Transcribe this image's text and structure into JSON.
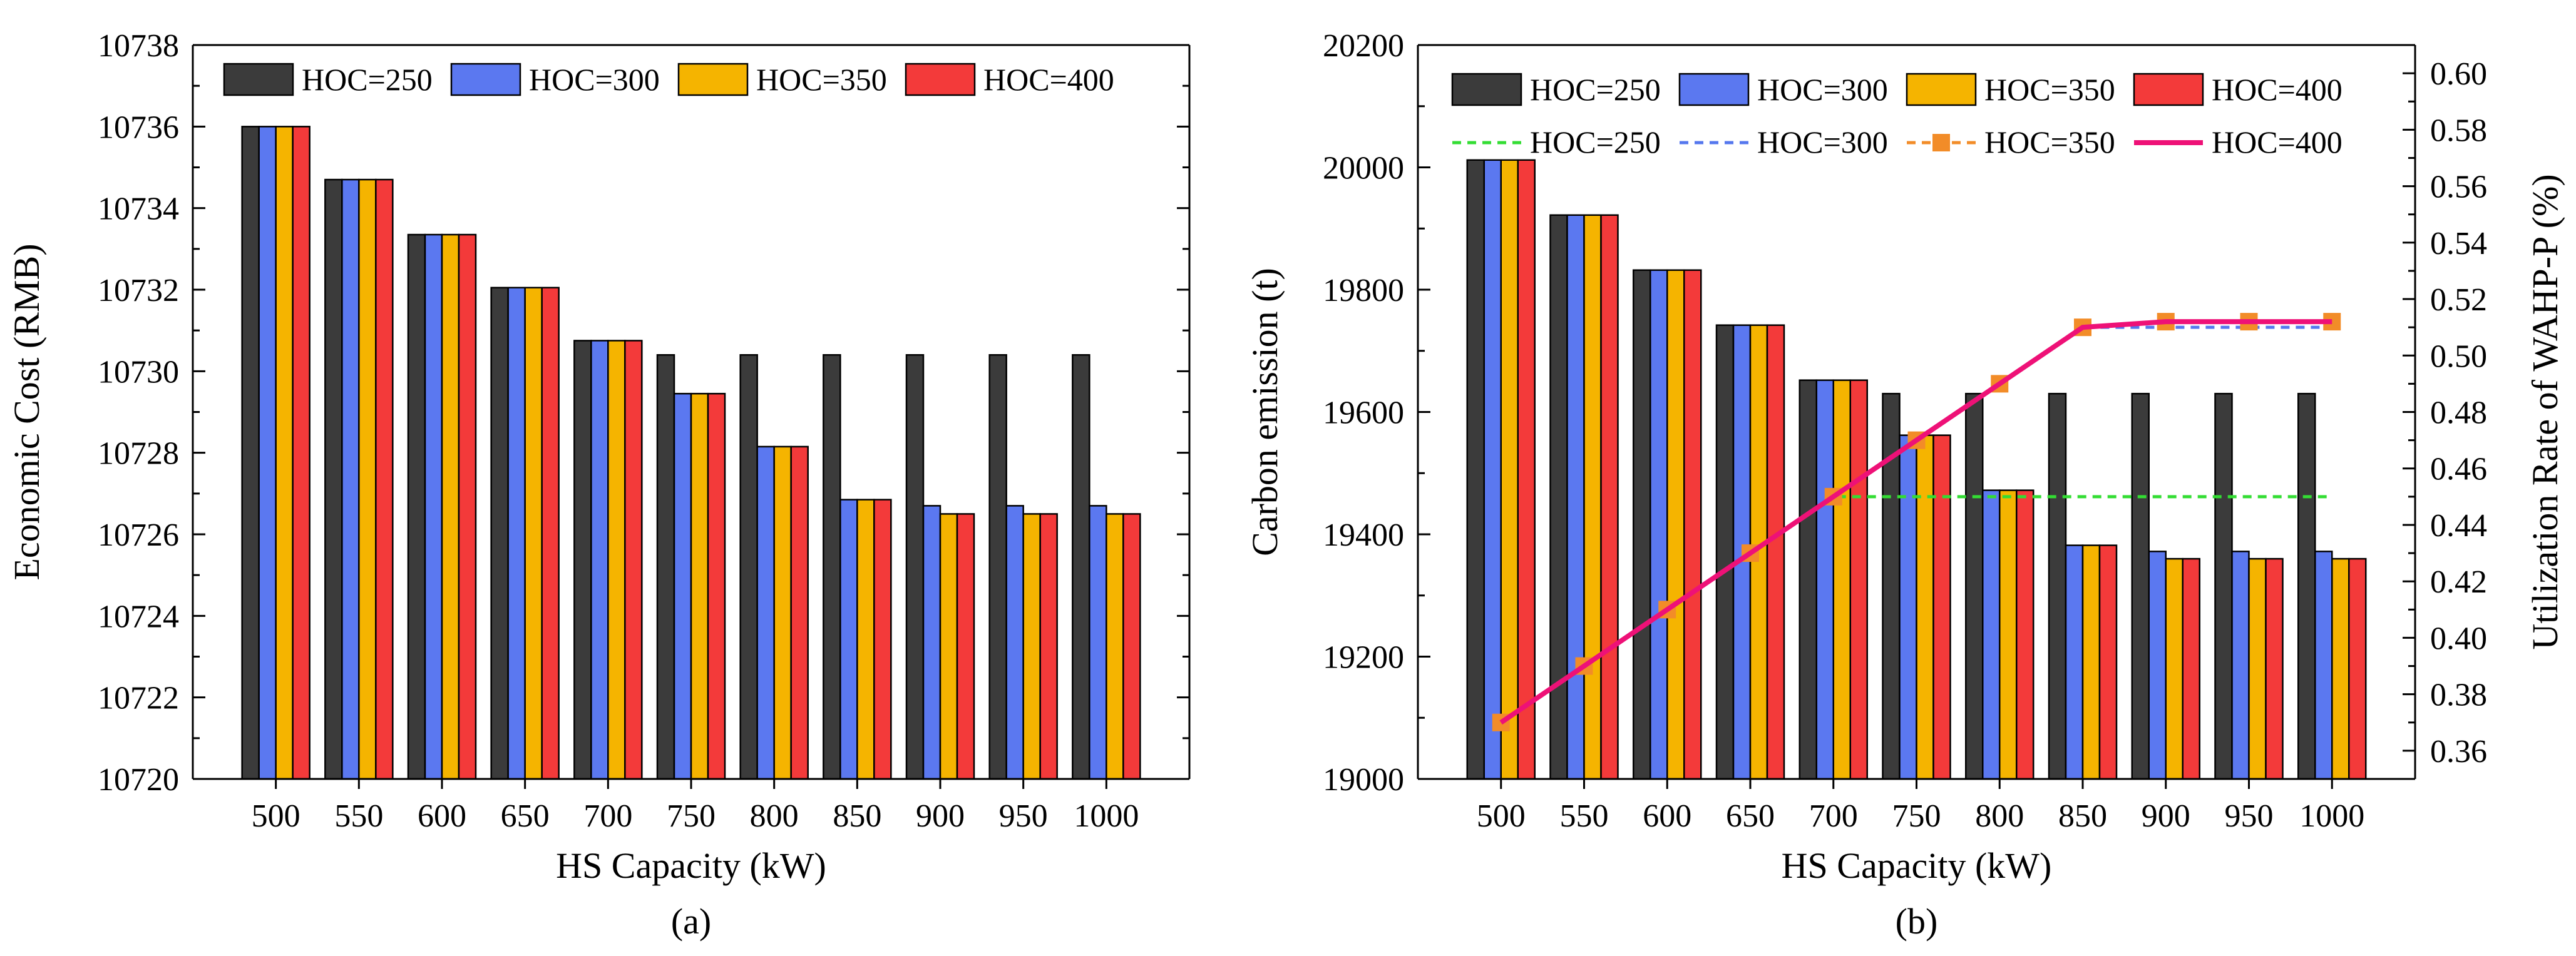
{
  "colors": {
    "HOC=250": "#3b3b3b",
    "HOC=300": "#5b78f0",
    "HOC=350": "#f5b400",
    "HOC=400": "#f33a3a",
    "line_250": "#33dd33",
    "line_300": "#5577ee",
    "line_350": "#f28c28",
    "line_400": "#ee1177",
    "axis": "#000000"
  },
  "chart_data": [
    {
      "id": "a",
      "type": "bar",
      "panel_label": "(a)",
      "xlabel": "HS Capacity (kW)",
      "ylabel": "Economic Cost (RMB)",
      "ylim": [
        10720,
        10738
      ],
      "yticks": [
        10720,
        10722,
        10724,
        10726,
        10728,
        10730,
        10732,
        10734,
        10736,
        10738
      ],
      "categories": [
        "500",
        "550",
        "600",
        "650",
        "700",
        "750",
        "800",
        "850",
        "900",
        "950",
        "1000"
      ],
      "legend_position": "top",
      "series": [
        {
          "name": "HOC=250",
          "values": [
            10736.0,
            10734.7,
            10733.35,
            10732.05,
            10730.75,
            10730.4,
            10730.4,
            10730.4,
            10730.4,
            10730.4,
            10730.4
          ]
        },
        {
          "name": "HOC=300",
          "values": [
            10736.0,
            10734.7,
            10733.35,
            10732.05,
            10730.75,
            10729.45,
            10728.15,
            10726.85,
            10726.7,
            10726.7,
            10726.7
          ]
        },
        {
          "name": "HOC=350",
          "values": [
            10736.0,
            10734.7,
            10733.35,
            10732.05,
            10730.75,
            10729.45,
            10728.15,
            10726.85,
            10726.5,
            10726.5,
            10726.5
          ]
        },
        {
          "name": "HOC=400",
          "values": [
            10736.0,
            10734.7,
            10733.35,
            10732.05,
            10730.75,
            10729.45,
            10728.15,
            10726.85,
            10726.5,
            10726.5,
            10726.5
          ]
        }
      ]
    },
    {
      "id": "b",
      "type": "bar+line",
      "panel_label": "(b)",
      "xlabel": "HS Capacity (kW)",
      "ylabel": "Carbon emission (t)",
      "y2label": "Utilization Rate of WAHP-P (%)",
      "ylim": [
        19000,
        20200
      ],
      "yticks": [
        19000,
        19200,
        19400,
        19600,
        19800,
        20000,
        20200
      ],
      "y2lim": [
        0.35,
        0.61
      ],
      "y2ticks": [
        "0.36",
        "0.38",
        "0.40",
        "0.42",
        "0.44",
        "0.46",
        "0.48",
        "0.50",
        "0.52",
        "0.54",
        "0.56",
        "0.58",
        "0.60"
      ],
      "categories": [
        "500",
        "550",
        "600",
        "650",
        "700",
        "750",
        "800",
        "850",
        "900",
        "950",
        "1000"
      ],
      "legend_position": "top",
      "series": [
        {
          "name": "HOC=250",
          "values": [
            20012,
            19922,
            19832,
            19742,
            19652,
            19630,
            19630,
            19630,
            19630,
            19630,
            19630
          ]
        },
        {
          "name": "HOC=300",
          "values": [
            20012,
            19922,
            19832,
            19742,
            19652,
            19562,
            19472,
            19382,
            19372,
            19372,
            19372
          ]
        },
        {
          "name": "HOC=350",
          "values": [
            20012,
            19922,
            19832,
            19742,
            19652,
            19562,
            19472,
            19382,
            19360,
            19360,
            19360
          ]
        },
        {
          "name": "HOC=400",
          "values": [
            20012,
            19922,
            19832,
            19742,
            19652,
            19562,
            19472,
            19382,
            19360,
            19360,
            19360
          ]
        }
      ],
      "line_series": [
        {
          "name": "HOC=250",
          "style": "dashed",
          "values": [
            0.37,
            0.39,
            0.41,
            0.43,
            0.45,
            0.45,
            0.45,
            0.45,
            0.45,
            0.45,
            0.45
          ]
        },
        {
          "name": "HOC=300",
          "style": "dashed",
          "values": [
            0.37,
            0.39,
            0.41,
            0.43,
            0.45,
            0.47,
            0.49,
            0.51,
            0.51,
            0.51,
            0.51
          ]
        },
        {
          "name": "HOC=350",
          "style": "dashed-square",
          "values": [
            0.37,
            0.39,
            0.41,
            0.43,
            0.45,
            0.47,
            0.49,
            0.51,
            0.512,
            0.512,
            0.512
          ]
        },
        {
          "name": "HOC=400",
          "style": "solid",
          "values": [
            0.37,
            0.39,
            0.41,
            0.43,
            0.45,
            0.47,
            0.49,
            0.51,
            0.512,
            0.512,
            0.512
          ]
        }
      ]
    }
  ]
}
